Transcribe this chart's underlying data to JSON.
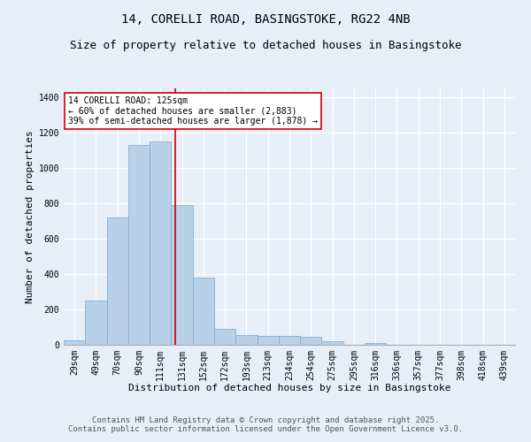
{
  "title_line1": "14, CORELLI ROAD, BASINGSTOKE, RG22 4NB",
  "title_line2": "Size of property relative to detached houses in Basingstoke",
  "xlabel": "Distribution of detached houses by size in Basingstoke",
  "ylabel": "Number of detached properties",
  "bar_color": "#b8d0e8",
  "bar_edge_color": "#7aa8cc",
  "bg_color": "#e8eef8",
  "grid_color": "#ffffff",
  "categories": [
    "29sqm",
    "49sqm",
    "70sqm",
    "90sqm",
    "111sqm",
    "131sqm",
    "152sqm",
    "172sqm",
    "193sqm",
    "213sqm",
    "234sqm",
    "254sqm",
    "275sqm",
    "295sqm",
    "316sqm",
    "336sqm",
    "357sqm",
    "377sqm",
    "398sqm",
    "418sqm",
    "439sqm"
  ],
  "values": [
    25,
    250,
    720,
    1130,
    1150,
    790,
    380,
    90,
    55,
    50,
    48,
    45,
    20,
    0,
    8,
    0,
    0,
    0,
    0,
    0,
    0
  ],
  "ylim": [
    0,
    1450
  ],
  "yticks": [
    0,
    200,
    400,
    600,
    800,
    1000,
    1200,
    1400
  ],
  "marker_color": "#cc0000",
  "annotation_text": "14 CORELLI ROAD: 125sqm\n← 60% of detached houses are smaller (2,883)\n39% of semi-detached houses are larger (1,878) →",
  "annotation_box_color": "#ffffff",
  "annotation_border_color": "#cc0000",
  "footer_text": "Contains HM Land Registry data © Crown copyright and database right 2025.\nContains public sector information licensed under the Open Government Licence v3.0.",
  "title_fontsize": 10,
  "subtitle_fontsize": 9,
  "annotation_fontsize": 7,
  "axis_label_fontsize": 8,
  "tick_fontsize": 7,
  "footer_fontsize": 6.5
}
